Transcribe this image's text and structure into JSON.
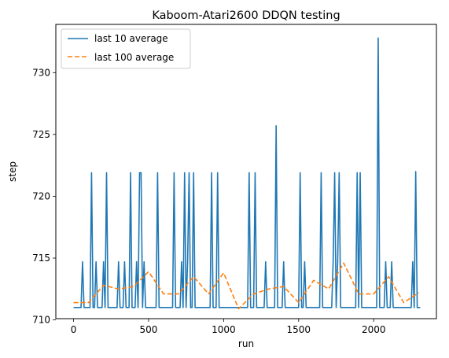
{
  "chart_data": {
    "type": "line",
    "title": "Kaboom-Atari2600 DDQN testing",
    "xlabel": "run",
    "ylabel": "step",
    "xlim": [
      -118,
      2418
    ],
    "ylim": [
      710.1,
      733.9
    ],
    "xticks": [
      0,
      500,
      1000,
      1500,
      2000
    ],
    "yticks": [
      710,
      715,
      720,
      725,
      730
    ],
    "legend_position": "top-left",
    "grid": false,
    "series": [
      {
        "name": "last 10 average",
        "color": "#1f77b4",
        "style": "solid",
        "points": [
          [
            0,
            711
          ],
          [
            50,
            711
          ],
          [
            60,
            714.7
          ],
          [
            70,
            711
          ],
          [
            110,
            711
          ],
          [
            120,
            721.9
          ],
          [
            130,
            711
          ],
          [
            140,
            711
          ],
          [
            150,
            714.7
          ],
          [
            160,
            711
          ],
          [
            190,
            711
          ],
          [
            200,
            714.7
          ],
          [
            210,
            711
          ],
          [
            220,
            721.9
          ],
          [
            230,
            711
          ],
          [
            290,
            711
          ],
          [
            300,
            714.7
          ],
          [
            310,
            711
          ],
          [
            330,
            711
          ],
          [
            340,
            714.7
          ],
          [
            350,
            711
          ],
          [
            370,
            711
          ],
          [
            380,
            721.9
          ],
          [
            390,
            711
          ],
          [
            410,
            711
          ],
          [
            420,
            714.7
          ],
          [
            430,
            711
          ],
          [
            440,
            721.9
          ],
          [
            450,
            721.9
          ],
          [
            460,
            711
          ],
          [
            470,
            714.7
          ],
          [
            480,
            711
          ],
          [
            550,
            711
          ],
          [
            560,
            721.9
          ],
          [
            570,
            711
          ],
          [
            660,
            711
          ],
          [
            670,
            721.9
          ],
          [
            680,
            711
          ],
          [
            710,
            711
          ],
          [
            720,
            714.7
          ],
          [
            730,
            711
          ],
          [
            740,
            721.9
          ],
          [
            750,
            711
          ],
          [
            760,
            714.7
          ],
          [
            770,
            721.9
          ],
          [
            780,
            711
          ],
          [
            790,
            711
          ],
          [
            800,
            721.9
          ],
          [
            810,
            711
          ],
          [
            910,
            711
          ],
          [
            920,
            721.9
          ],
          [
            930,
            711
          ],
          [
            950,
            711
          ],
          [
            960,
            721.9
          ],
          [
            970,
            711
          ],
          [
            1160,
            711
          ],
          [
            1170,
            721.9
          ],
          [
            1180,
            711
          ],
          [
            1200,
            711
          ],
          [
            1210,
            721.9
          ],
          [
            1220,
            711
          ],
          [
            1270,
            711
          ],
          [
            1280,
            714.7
          ],
          [
            1290,
            711
          ],
          [
            1340,
            711
          ],
          [
            1350,
            725.7
          ],
          [
            1360,
            711
          ],
          [
            1390,
            711
          ],
          [
            1400,
            714.7
          ],
          [
            1410,
            711
          ],
          [
            1500,
            711
          ],
          [
            1510,
            721.9
          ],
          [
            1520,
            711
          ],
          [
            1530,
            711
          ],
          [
            1540,
            714.7
          ],
          [
            1550,
            711
          ],
          [
            1640,
            711
          ],
          [
            1650,
            721.9
          ],
          [
            1660,
            711
          ],
          [
            1720,
            711
          ],
          [
            1730,
            714.7
          ],
          [
            1740,
            721.9
          ],
          [
            1750,
            711
          ],
          [
            1760,
            714.7
          ],
          [
            1770,
            721.9
          ],
          [
            1780,
            711
          ],
          [
            1880,
            711
          ],
          [
            1890,
            721.9
          ],
          [
            1900,
            711
          ],
          [
            1910,
            721.9
          ],
          [
            1920,
            711
          ],
          [
            2020,
            711
          ],
          [
            2030,
            732.8
          ],
          [
            2040,
            711
          ],
          [
            2070,
            711
          ],
          [
            2080,
            714.7
          ],
          [
            2090,
            711
          ],
          [
            2110,
            711
          ],
          [
            2120,
            714.7
          ],
          [
            2130,
            711
          ],
          [
            2250,
            711
          ],
          [
            2260,
            714.7
          ],
          [
            2270,
            711
          ],
          [
            2280,
            722
          ],
          [
            2290,
            711
          ],
          [
            2310,
            711
          ]
        ]
      },
      {
        "name": "last 100 average",
        "color": "#ff7f0e",
        "style": "dashed",
        "points": [
          [
            0,
            711.4
          ],
          [
            100,
            711.4
          ],
          [
            200,
            712.8
          ],
          [
            300,
            712.5
          ],
          [
            400,
            712.7
          ],
          [
            500,
            713.9
          ],
          [
            600,
            712.1
          ],
          [
            700,
            712.1
          ],
          [
            800,
            713.5
          ],
          [
            900,
            712.1
          ],
          [
            1000,
            713.8
          ],
          [
            1100,
            710.9
          ],
          [
            1200,
            712.1
          ],
          [
            1300,
            712.5
          ],
          [
            1400,
            712.7
          ],
          [
            1500,
            711.4
          ],
          [
            1600,
            713.2
          ],
          [
            1700,
            712.5
          ],
          [
            1800,
            714.6
          ],
          [
            1900,
            712.1
          ],
          [
            2000,
            712.1
          ],
          [
            2100,
            713.5
          ],
          [
            2200,
            711.4
          ],
          [
            2300,
            712.2
          ]
        ]
      }
    ]
  }
}
